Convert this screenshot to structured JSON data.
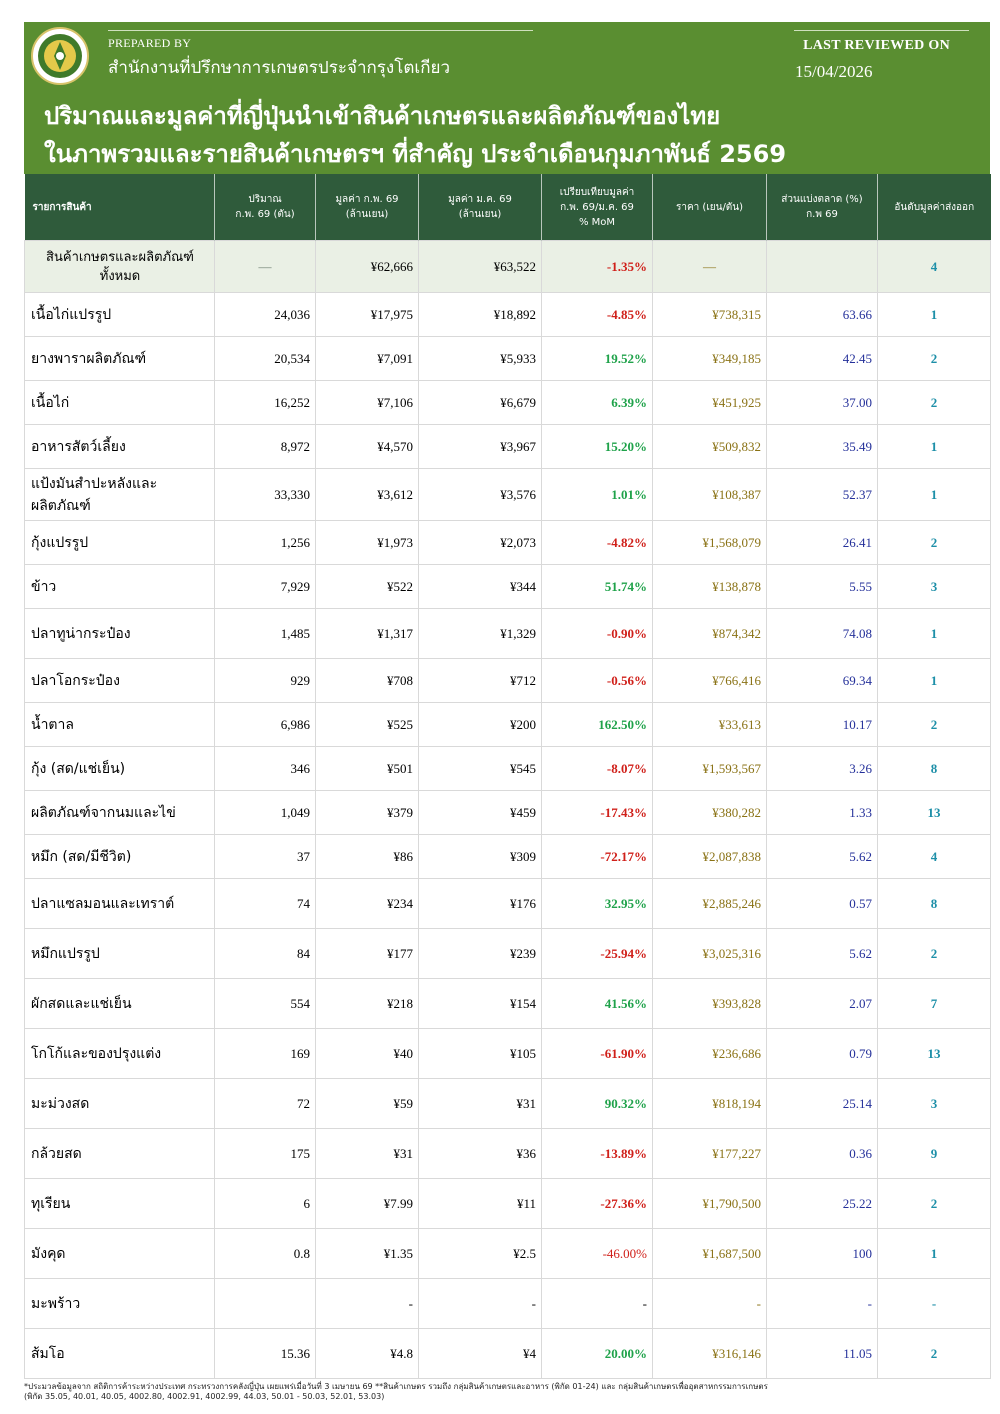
{
  "header": {
    "prepared_by_label": "PREPARED BY",
    "office": "สำนักงานที่ปรึกษาการเกษตรประจำกรุงโตเกียว",
    "last_reviewed_label": "LAST REVIEWED ON",
    "last_reviewed_date": "15/04/2026",
    "title_line1": "ปริมาณและมูลค่าที่ญี่ปุ่นนำเข้าสินค้าเกษตรและผลิตภัณฑ์ของไทย",
    "title_line2": "ในภาพรวมและรายสินค้าเกษตรฯ ที่สำคัญ ประจำเดือนกุมภาพันธ์ 2569"
  },
  "colors": {
    "banner": "#5a8e31",
    "table_header": "#2f5b3b",
    "positive": "#1fa24a",
    "negative": "#d0201a"
  },
  "table": {
    "columns": {
      "c1": "รายการสินค้า",
      "c2a": "ปริมาณ",
      "c2b": "ก.พ. 69 (ตัน)",
      "c3a": "มูลค่า ก.พ. 69",
      "c3b": "(ล้านเยน)",
      "c4a": "มูลค่า ม.ค. 69",
      "c4b": "(ล้านเยน)",
      "c5a": "เปรียบเทียบมูลค่า",
      "c5b": "ก.พ. 69/ม.ค. 69",
      "c5c": "% MoM",
      "c6": "ราคา (เยน/ตัน)",
      "c7a": "ส่วนแบ่งตลาด (%)",
      "c7b": "ก.พ 69",
      "c8": "อันดับมูลค่าส่งออก"
    },
    "total": {
      "name1": "สินค้าเกษตรและผลิตภัณฑ์",
      "name2": "ทั้งหมด",
      "qty": "—",
      "feb": "¥62,666",
      "jan": "¥63,522",
      "mom": "-1.35%",
      "price": "—",
      "share": "",
      "rank": "4"
    },
    "rows": [
      {
        "name": "เนื้อไก่แปรรูป",
        "qty": "24,036",
        "feb": "¥17,975",
        "jan": "¥18,892",
        "mom": "-4.85%",
        "price": "¥738,315",
        "share": "63.66",
        "rank": "1"
      },
      {
        "name": "ยางพาราผลิตภัณฑ์",
        "qty": "20,534",
        "feb": "¥7,091",
        "jan": "¥5,933",
        "mom": "19.52%",
        "price": "¥349,185",
        "share": "42.45",
        "rank": "2"
      },
      {
        "name": "เนื้อไก่",
        "qty": "16,252",
        "feb": "¥7,106",
        "jan": "¥6,679",
        "mom": "6.39%",
        "price": "¥451,925",
        "share": "37.00",
        "rank": "2"
      },
      {
        "name": "อาหารสัตว์เลี้ยง",
        "qty": "8,972",
        "feb": "¥4,570",
        "jan": "¥3,967",
        "mom": "15.20%",
        "price": "¥509,832",
        "share": "35.49",
        "rank": "1"
      },
      {
        "name": "แป้งมันสำปะหลังและผลิตภัณฑ์",
        "qty": "33,330",
        "feb": "¥3,612",
        "jan": "¥3,576",
        "mom": "1.01%",
        "price": "¥108,387",
        "share": "52.37",
        "rank": "1"
      },
      {
        "name": "กุ้งแปรรูป",
        "qty": "1,256",
        "feb": "¥1,973",
        "jan": "¥2,073",
        "mom": "-4.82%",
        "price": "¥1,568,079",
        "share": "26.41",
        "rank": "2"
      },
      {
        "name": "ข้าว",
        "qty": "7,929",
        "feb": "¥522",
        "jan": "¥344",
        "mom": "51.74%",
        "price": "¥138,878",
        "share": "5.55",
        "rank": "3"
      },
      {
        "name": "ปลาทูน่ากระป๋อง",
        "qty": "1,485",
        "feb": "¥1,317",
        "jan": "¥1,329",
        "mom": "-0.90%",
        "price": "¥874,342",
        "share": "74.08",
        "rank": "1"
      },
      {
        "name": "ปลาโอกระป๋อง",
        "qty": "929",
        "feb": "¥708",
        "jan": "¥712",
        "mom": "-0.56%",
        "price": "¥766,416",
        "share": "69.34",
        "rank": "1"
      },
      {
        "name": "น้ำตาล",
        "qty": "6,986",
        "feb": "¥525",
        "jan": "¥200",
        "mom": "162.50%",
        "price": "¥33,613",
        "share": "10.17",
        "rank": "2"
      },
      {
        "name": "กุ้ง (สด/แช่เย็น)",
        "qty": "346",
        "feb": "¥501",
        "jan": "¥545",
        "mom": "-8.07%",
        "price": "¥1,593,567",
        "share": "3.26",
        "rank": "8"
      },
      {
        "name": "ผลิตภัณฑ์จากนมและไข่",
        "qty": "1,049",
        "feb": "¥379",
        "jan": "¥459",
        "mom": "-17.43%",
        "price": "¥380,282",
        "share": "1.33",
        "rank": "13"
      },
      {
        "name": "หมึก (สด/มีชีวิต)",
        "qty": "37",
        "feb": "¥86",
        "jan": "¥309",
        "mom": "-72.17%",
        "price": "¥2,087,838",
        "share": "5.62",
        "rank": "4"
      },
      {
        "name": "ปลาแซลมอนและเทราต์",
        "qty": "74",
        "feb": "¥234",
        "jan": "¥176",
        "mom": "32.95%",
        "price": "¥2,885,246",
        "share": "0.57",
        "rank": "8"
      },
      {
        "name": "หมึกแปรรูป",
        "qty": "84",
        "feb": "¥177",
        "jan": "¥239",
        "mom": "-25.94%",
        "price": "¥3,025,316",
        "share": "5.62",
        "rank": "2"
      },
      {
        "name": "ผักสดและแช่เย็น",
        "qty": "554",
        "feb": "¥218",
        "jan": "¥154",
        "mom": "41.56%",
        "price": "¥393,828",
        "share": "2.07",
        "rank": "7"
      },
      {
        "name": "โกโก้และของปรุงแต่ง",
        "qty": "169",
        "feb": "¥40",
        "jan": "¥105",
        "mom": "-61.90%",
        "price": "¥236,686",
        "share": "0.79",
        "rank": "13"
      },
      {
        "name": "มะม่วงสด",
        "qty": "72",
        "feb": "¥59",
        "jan": "¥31",
        "mom": "90.32%",
        "price": "¥818,194",
        "share": "25.14",
        "rank": "3"
      },
      {
        "name": "กล้วยสด",
        "qty": "175",
        "feb": "¥31",
        "jan": "¥36",
        "mom": "-13.89%",
        "price": "¥177,227",
        "share": "0.36",
        "rank": "9"
      },
      {
        "name": "ทุเรียน",
        "qty": "6",
        "feb": "¥7.99",
        "jan": "¥11",
        "mom": "-27.36%",
        "price": "¥1,790,500",
        "share": "25.22",
        "rank": "2"
      },
      {
        "name": "มังคุด",
        "qty": "0.8",
        "feb": "¥1.35",
        "jan": "¥2.5",
        "mom": "-46.00%",
        "price": "¥1,687,500",
        "share": "100",
        "rank": "1"
      },
      {
        "name": "มะพร้าว",
        "qty": "",
        "feb": "-",
        "jan": "-",
        "mom": "-",
        "price": "-",
        "share": "-",
        "rank": "-"
      },
      {
        "name": "ส้มโอ",
        "qty": "15.36",
        "feb": "¥4.8",
        "jan": "¥4",
        "mom": "20.00%",
        "price": "¥316,146",
        "share": "11.05",
        "rank": "2"
      }
    ]
  },
  "footnote": {
    "line1": "*ประมวลข้อมูลจาก สถิติการค้าระหว่างประเทศ กระทรวงการคลังญี่ปุ่น เผยแพร่เมื่อวันที่ 3 เมษายน 69 **สินค้าเกษตร รวมถึง กลุ่มสินค้าเกษตรและอาหาร (พิกัด 01-24) และ กลุ่มสินค้าเกษตรเพื่ออุตสาหกรรมการเกษตร",
    "line2": "(พิกัด 35.05, 40.01, 40.05, 4002.80, 4002.91, 4002.99, 44.03, 50.01 - 50.03, 52.01, 53.03)"
  }
}
